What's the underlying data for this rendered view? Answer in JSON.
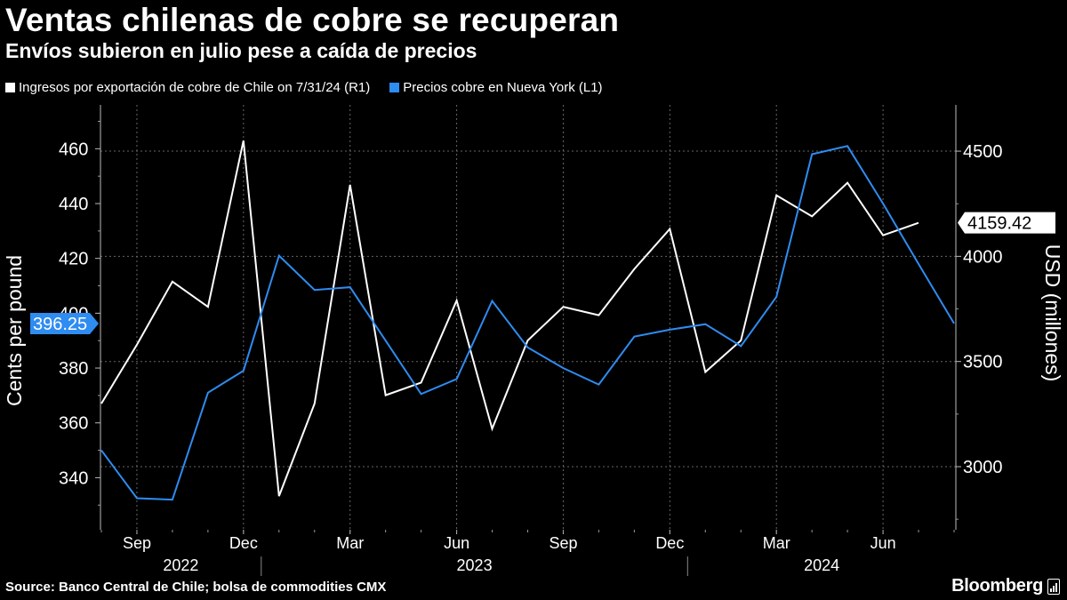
{
  "header": {
    "title": "Ventas chilenas de cobre se recuperan",
    "subtitle": "Envíos subieron en julio pese a caída de precios"
  },
  "legend": {
    "items": [
      {
        "label": "Ingresos por exportación de cobre de Chile on 7/31/24 (R1)",
        "color": "#ffffff"
      },
      {
        "label": "Precios cobre en Nueva York (L1)",
        "color": "#2f8cf0"
      }
    ]
  },
  "footer": {
    "source": "Source: Banco Central de Chile; bolsa de commodities CMX",
    "brand": "Bloomberg"
  },
  "chart_data": {
    "type": "line",
    "title": "Ventas chilenas de cobre se recuperan",
    "subtitle": "Envíos subieron en julio pese a caída de precios",
    "x_tick_labels": [
      "Sep",
      "Dec",
      "Mar",
      "Jun",
      "Sep",
      "Dec",
      "Mar",
      "Jun"
    ],
    "x_year_labels": [
      "2022",
      "2023",
      "2024"
    ],
    "x_months": [
      "2022-08",
      "2022-09",
      "2022-10",
      "2022-11",
      "2022-12",
      "2023-01",
      "2023-02",
      "2023-03",
      "2023-04",
      "2023-05",
      "2023-06",
      "2023-07",
      "2023-08",
      "2023-09",
      "2023-10",
      "2023-11",
      "2023-12",
      "2024-01",
      "2024-02",
      "2024-03",
      "2024-04",
      "2024-05",
      "2024-06",
      "2024-07",
      "2024-08"
    ],
    "y_left": {
      "label": "Cents per pound",
      "ticks": [
        340,
        360,
        380,
        400,
        420,
        440,
        460
      ],
      "range": [
        321,
        476
      ]
    },
    "y_right": {
      "label": "USD (millones)",
      "ticks": [
        3000,
        3500,
        4000,
        4500
      ],
      "range": [
        2700,
        4720
      ]
    },
    "series": [
      {
        "name": "Ingresos por exportación de cobre de Chile on 7/31/24 (R1)",
        "axis": "right",
        "color": "#ffffff",
        "values": [
          3300,
          3580,
          3880,
          3760,
          4550,
          2860,
          3300,
          4340,
          3340,
          3400,
          3790,
          3180,
          3600,
          3760,
          3720,
          3940,
          4130,
          3450,
          3600,
          4290,
          4190,
          4350,
          4100,
          4159.42,
          null
        ],
        "last_value_label": "4159.42"
      },
      {
        "name": "Precios cobre en Nueva York (L1)",
        "axis": "left",
        "color": "#2f8cf0",
        "values": [
          350,
          332.5,
          332,
          371,
          379,
          421,
          408.5,
          409.5,
          390,
          370.5,
          376,
          404.5,
          387.5,
          380,
          374,
          391.5,
          394,
          396,
          388,
          406,
          458,
          461,
          440,
          418,
          396.25
        ],
        "last_value_label": "396.25"
      }
    ]
  }
}
